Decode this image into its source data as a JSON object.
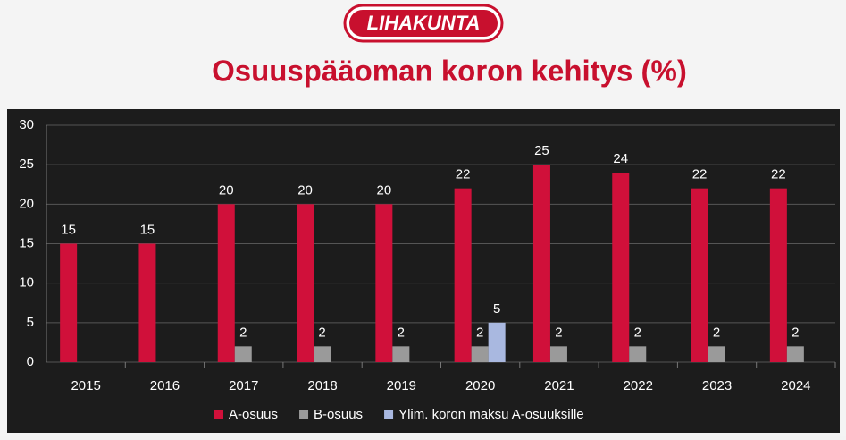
{
  "logo": "LIHAKUNTA",
  "chart_data": {
    "type": "bar",
    "title": "Osuuspääoman koron kehitys (%)",
    "categories": [
      "2015",
      "2016",
      "2017",
      "2018",
      "2019",
      "2020",
      "2021",
      "2022",
      "2023",
      "2024"
    ],
    "series": [
      {
        "name": "A-osuus",
        "color": "#d0103a",
        "values": [
          15,
          15,
          20,
          20,
          20,
          22,
          25,
          24,
          22,
          22
        ]
      },
      {
        "name": "B-osuus",
        "color": "#9a9a9a",
        "values": [
          null,
          null,
          2,
          2,
          2,
          2,
          2,
          2,
          2,
          2
        ]
      },
      {
        "name": "Ylim. koron maksu A-osuuksille",
        "color": "#a9b8e0",
        "values": [
          null,
          null,
          null,
          null,
          null,
          5,
          null,
          null,
          null,
          null
        ]
      }
    ],
    "ylim": [
      0,
      30
    ],
    "yticks": [
      0,
      5,
      10,
      15,
      20,
      25,
      30
    ],
    "grid": true,
    "legend": "bottom"
  }
}
